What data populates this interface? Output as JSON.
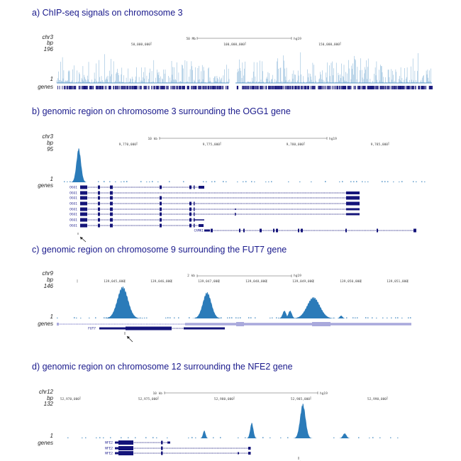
{
  "colors": {
    "signal": "#2b7bb9",
    "gene": "#14147a",
    "gene_light": "#a9a9dc",
    "title": "#1a1a8c"
  },
  "panels": [
    {
      "title": "a) ChIP-seq signals on chromosome 3",
      "chrom": "chr3",
      "unit": "bp",
      "ymax": "196",
      "ymin": "1",
      "genes_label": "genes",
      "scale_label": "50 Mb",
      "assembly": "hg19",
      "ticks": [
        "50,000,000",
        "100,000,000",
        "150,000,000"
      ],
      "gene_names": []
    },
    {
      "title": "b) genomic region on chromosome 3 surrounding the OGG1 gene",
      "chrom": "chr3",
      "unit": "bp",
      "ymax": "95",
      "ymin": "1",
      "genes_label": "genes",
      "scale_label": "10 kb",
      "assembly": "hg19",
      "ticks": [
        "9,770,000",
        "9,775,000",
        "9,780,000",
        "9,785,000"
      ],
      "gene_names": [
        "OGG1",
        "OGG1",
        "OGG1",
        "OGG1",
        "OGG1",
        "OGG1",
        "OGG1",
        "OGG1",
        "CAMK1"
      ]
    },
    {
      "title": "c) genomic region on chromosome 9 surrounding the FUT7 gene",
      "chrom": "chr9",
      "unit": "bp",
      "ymax": "146",
      "ymin": "1",
      "genes_label": "genes",
      "scale_label": "2 kb",
      "assembly": "hg19",
      "ticks": [
        "139,045,000",
        "139,046,000",
        "139,047,000",
        "139,048,000",
        "139,049,000",
        "139,050,000",
        "139,051,000"
      ],
      "gene_names": [
        "FUT7"
      ]
    },
    {
      "title": "d) genomic region on chromosome 12 surrounding the NFE2 gene",
      "chrom": "chr12",
      "unit": "bp",
      "ymax": "132",
      "ymin": "1",
      "genes_label": "genes",
      "scale_label": "10 kb",
      "assembly": "hg19",
      "ticks": [
        "52,970,000",
        "52,975,000",
        "52,980,000",
        "52,985,000",
        "52,990,000"
      ],
      "gene_names": [
        "NFE2",
        "NFE2",
        "NFE2"
      ]
    }
  ],
  "chart_data": [
    {
      "type": "area",
      "title": "a) ChIP-seq signals on chromosome 3",
      "xlabel": "chr3 bp",
      "ylabel": "",
      "ylim": [
        1,
        196
      ],
      "xlim": [
        0,
        198000000
      ],
      "grid": false,
      "description_of_series": "dense spiky signal across whole chromosome with a gap near the centromere (~91-94 Mb)"
    },
    {
      "type": "area",
      "title": "b) genomic region on chromosome 3 surrounding the OGG1 gene",
      "ylim": [
        1,
        95
      ],
      "grid": false,
      "peaks": [
        {
          "position": 9766540,
          "value": 95
        }
      ],
      "arrow_at": 9766540
    },
    {
      "type": "area",
      "title": "c) genomic region on chromosome 9 surrounding the FUT7 gene",
      "ylim": [
        1,
        146
      ],
      "grid": false,
      "peaks": [
        {
          "position": 139044950,
          "value": 146
        },
        {
          "position": 139046740,
          "value": 120
        },
        {
          "position": 139048440,
          "value": 36
        },
        {
          "position": 139049000,
          "value": 97
        }
      ],
      "arrow_at": 139044990
    },
    {
      "type": "area",
      "title": "d) genomic region on chromosome 12 surrounding the NFE2 gene",
      "ylim": [
        1,
        132
      ],
      "grid": false,
      "peaks": [
        {
          "position": 52978080,
          "value": 30
        },
        {
          "position": 52981180,
          "value": 59
        },
        {
          "position": 52984500,
          "value": 132
        },
        {
          "position": 52987230,
          "value": 19
        }
      ],
      "arrow_at": 52984300
    }
  ]
}
